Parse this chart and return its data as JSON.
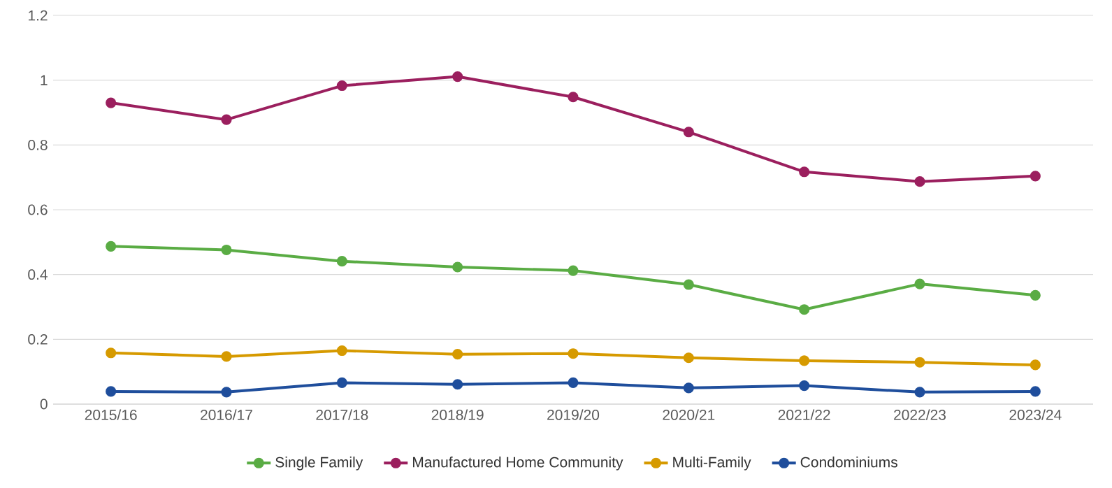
{
  "chart_data": {
    "type": "line",
    "categories": [
      "2015/16",
      "2016/17",
      "2017/18",
      "2018/19",
      "2019/20",
      "2020/21",
      "2021/22",
      "2022/23",
      "2023/24"
    ],
    "series": [
      {
        "name": "Single Family",
        "color": "#5aac44",
        "values": [
          0.487,
          0.476,
          0.441,
          0.423,
          0.412,
          0.369,
          0.292,
          0.371,
          0.336
        ]
      },
      {
        "name": "Manufactured Home Community",
        "color": "#9b1f5e",
        "values": [
          0.93,
          0.878,
          0.983,
          1.011,
          0.948,
          0.84,
          0.717,
          0.687,
          0.704
        ]
      },
      {
        "name": "Multi-Family",
        "color": "#d69a00",
        "values": [
          0.158,
          0.147,
          0.165,
          0.154,
          0.156,
          0.143,
          0.134,
          0.129,
          0.121
        ]
      },
      {
        "name": "Condominiums",
        "color": "#1f4e9c",
        "values": [
          0.039,
          0.037,
          0.066,
          0.061,
          0.066,
          0.05,
          0.057,
          0.037,
          0.039
        ]
      }
    ],
    "ylim": [
      0,
      1.2
    ],
    "yticks": [
      0,
      0.2,
      0.4,
      0.6,
      0.8,
      1,
      1.2
    ],
    "grid": "y",
    "legend": "bottom",
    "marker": "circle",
    "line_style": "solid"
  }
}
